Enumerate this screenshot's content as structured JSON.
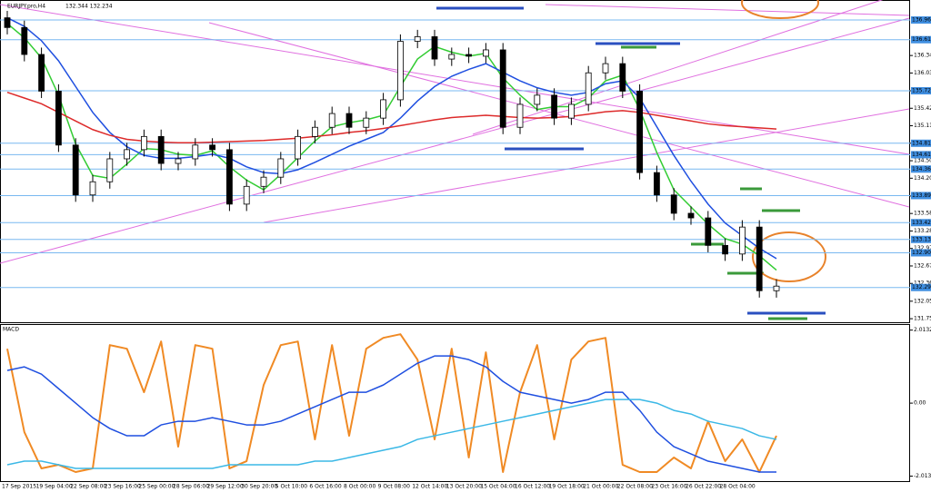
{
  "chart_data": [
    {
      "type": "candlestick",
      "title": "EURJPY.pro,H4",
      "subtitle": "132.344 132.234",
      "categories": [
        "17 Sep 2015",
        null,
        "19 Sep 04:00",
        null,
        "22 Sep 08:00",
        null,
        "23 Sep 16:00",
        null,
        "25 Sep 00:00",
        null,
        "28 Sep 06:00",
        null,
        "29 Sep 12:00",
        null,
        "30 Sep 20:00",
        null,
        "5 Oct 10:00",
        null,
        "6 Oct 16:00",
        null,
        "8 Oct 00:00",
        null,
        "9 Oct 08:00",
        null,
        "12 Oct 14:00",
        null,
        "13 Oct 20:00",
        null,
        "15 Oct 04:00",
        null,
        "16 Oct 12:00",
        null,
        "19 Oct 18:00",
        null,
        "21 Oct 00:00",
        null,
        "22 Oct 08:00",
        null,
        "23 Oct 16:00",
        null,
        "26 Oct 22:00",
        null,
        "28 Oct 04:00",
        null,
        null,
        null
      ],
      "open": [
        137.0,
        136.83,
        136.36,
        135.72,
        134.78,
        133.91,
        134.14,
        134.54,
        134.7,
        134.93,
        134.46,
        134.54,
        134.78,
        134.7,
        133.75,
        134.06,
        134.22,
        134.54,
        134.93,
        135.09,
        135.33,
        135.09,
        135.25,
        135.57,
        136.59,
        136.67,
        136.28,
        136.36,
        136.33,
        136.44,
        135.09,
        135.49,
        135.65,
        135.25,
        135.49,
        136.04,
        136.2,
        135.72,
        134.3,
        133.91,
        133.59,
        133.51,
        133.03,
        132.88,
        133.35,
        132.24
      ],
      "high": [
        137.12,
        136.95,
        136.48,
        135.84,
        134.9,
        134.26,
        134.66,
        134.82,
        135.05,
        135.05,
        134.66,
        134.9,
        134.9,
        134.82,
        134.18,
        134.34,
        134.66,
        135.05,
        135.21,
        135.45,
        135.45,
        135.37,
        135.69,
        136.71,
        136.79,
        136.79,
        136.48,
        136.48,
        136.56,
        136.56,
        135.61,
        135.77,
        135.77,
        135.61,
        136.16,
        136.32,
        136.32,
        135.84,
        134.42,
        134.03,
        133.71,
        133.63,
        133.15,
        133.47,
        133.47,
        132.44
      ],
      "low": [
        136.71,
        136.24,
        135.6,
        134.66,
        133.79,
        133.79,
        134.02,
        134.42,
        134.58,
        134.34,
        134.34,
        134.42,
        134.58,
        133.63,
        133.63,
        133.94,
        134.1,
        134.42,
        134.81,
        134.97,
        134.97,
        134.97,
        135.13,
        135.45,
        136.47,
        136.16,
        136.16,
        136.21,
        136.21,
        134.97,
        134.97,
        135.37,
        135.13,
        135.13,
        135.37,
        135.92,
        135.6,
        134.18,
        133.79,
        133.47,
        133.39,
        132.91,
        132.76,
        132.76,
        132.12,
        132.12
      ],
      "close": [
        136.83,
        136.36,
        135.72,
        134.78,
        133.91,
        134.14,
        134.54,
        134.7,
        134.93,
        134.46,
        134.54,
        134.78,
        134.7,
        133.75,
        134.06,
        134.22,
        134.54,
        134.93,
        135.09,
        135.33,
        135.09,
        135.25,
        135.57,
        136.59,
        136.67,
        136.28,
        136.36,
        136.33,
        136.44,
        135.09,
        135.49,
        135.65,
        135.25,
        135.49,
        136.04,
        136.2,
        135.72,
        134.3,
        133.91,
        133.59,
        133.51,
        133.03,
        132.88,
        133.35,
        132.24,
        132.32
      ],
      "series": [
        {
          "color": "#33cc33",
          "values": [
            136.9,
            136.65,
            136.3,
            135.65,
            134.8,
            134.25,
            134.2,
            134.45,
            134.72,
            134.7,
            134.62,
            134.6,
            134.68,
            134.4,
            134.17,
            134.0,
            134.27,
            134.56,
            134.85,
            135.1,
            135.17,
            135.22,
            135.3,
            135.8,
            136.28,
            136.5,
            136.4,
            136.33,
            136.38,
            135.95,
            135.65,
            135.4,
            135.45,
            135.45,
            135.6,
            135.9,
            136.0,
            135.4,
            134.65,
            134.0,
            133.7,
            133.4,
            133.15,
            133.05,
            132.85,
            132.6
          ]
        },
        {
          "color": "#1f4fe0",
          "values": [
            137.0,
            136.85,
            136.6,
            136.25,
            135.8,
            135.35,
            135.0,
            134.75,
            134.6,
            134.55,
            134.55,
            134.58,
            134.62,
            134.55,
            134.4,
            134.3,
            134.28,
            134.35,
            134.48,
            134.62,
            134.76,
            134.88,
            135.0,
            135.25,
            135.55,
            135.8,
            135.98,
            136.1,
            136.2,
            136.05,
            135.9,
            135.78,
            135.7,
            135.65,
            135.7,
            135.85,
            135.9,
            135.6,
            135.1,
            134.6,
            134.15,
            133.75,
            133.42,
            133.2,
            132.98,
            132.8
          ]
        },
        {
          "color": "#dd2a2a",
          "values": [
            135.7,
            135.6,
            135.5,
            135.35,
            135.2,
            135.05,
            134.95,
            134.88,
            134.85,
            134.83,
            134.82,
            134.82,
            134.83,
            134.84,
            134.85,
            134.86,
            134.88,
            134.9,
            134.93,
            134.96,
            135.0,
            135.03,
            135.07,
            135.12,
            135.17,
            135.22,
            135.26,
            135.28,
            135.3,
            135.28,
            135.26,
            135.25,
            135.26,
            135.28,
            135.32,
            135.36,
            135.38,
            135.35,
            135.3,
            135.25,
            135.2,
            135.15,
            135.12,
            135.1,
            135.08,
            135.06
          ]
        }
      ],
      "levels": [
        136.961,
        136.618,
        135.727,
        134.812,
        134.612,
        134.361,
        133.899,
        133.427,
        133.134,
        132.901,
        132.296
      ],
      "ylim": [
        131.69,
        137.31
      ],
      "yticks": [
        131.752,
        132.057,
        132.367,
        132.672,
        132.977,
        133.282,
        133.587,
        133.892,
        134.202,
        134.507,
        134.812,
        135.117,
        135.422,
        135.727,
        136.037,
        136.342
      ]
    },
    {
      "type": "line",
      "title": "MACD",
      "series": [
        {
          "color": "#f08a24",
          "values": [
            1.5,
            -0.8,
            -1.8,
            -1.7,
            -1.9,
            -1.8,
            1.6,
            1.5,
            0.3,
            1.7,
            -1.2,
            1.6,
            1.5,
            -1.8,
            -1.6,
            0.5,
            1.6,
            1.7,
            -1.0,
            1.6,
            -0.9,
            1.5,
            1.8,
            1.9,
            1.2,
            -1.0,
            1.5,
            -1.5,
            1.4,
            -1.9,
            0.3,
            1.6,
            -1.0,
            1.2,
            1.7,
            1.8,
            -1.7,
            -1.9,
            -1.9,
            -1.5,
            -1.8,
            -0.5,
            -1.6,
            -1.0,
            -1.9,
            -0.9
          ]
        },
        {
          "color": "#1f4fe0",
          "values": [
            0.9,
            1.0,
            0.8,
            0.4,
            0.0,
            -0.4,
            -0.7,
            -0.9,
            -0.9,
            -0.6,
            -0.5,
            -0.5,
            -0.4,
            -0.5,
            -0.6,
            -0.6,
            -0.5,
            -0.3,
            -0.1,
            0.1,
            0.3,
            0.3,
            0.5,
            0.8,
            1.1,
            1.3,
            1.3,
            1.2,
            1.0,
            0.6,
            0.3,
            0.2,
            0.1,
            0.0,
            0.1,
            0.3,
            0.3,
            -0.2,
            -0.8,
            -1.2,
            -1.4,
            -1.6,
            -1.7,
            -1.8,
            -1.9,
            -1.9
          ]
        },
        {
          "color": "#3bb8e6",
          "values": [
            -1.7,
            -1.6,
            -1.6,
            -1.7,
            -1.8,
            -1.8,
            -1.8,
            -1.8,
            -1.8,
            -1.8,
            -1.8,
            -1.8,
            -1.8,
            -1.7,
            -1.7,
            -1.7,
            -1.7,
            -1.7,
            -1.6,
            -1.6,
            -1.5,
            -1.4,
            -1.3,
            -1.2,
            -1.0,
            -0.9,
            -0.8,
            -0.7,
            -0.6,
            -0.5,
            -0.4,
            -0.3,
            -0.2,
            -0.1,
            0.0,
            0.1,
            0.1,
            0.1,
            0.0,
            -0.2,
            -0.3,
            -0.5,
            -0.6,
            -0.7,
            -0.9,
            -1.0
          ]
        }
      ],
      "ylim": [
        -2.15,
        2.18
      ],
      "yticks": [
        2.0132,
        {
          "value": 0,
          "label": "0.00"
        },
        -2.0132
      ]
    }
  ]
}
